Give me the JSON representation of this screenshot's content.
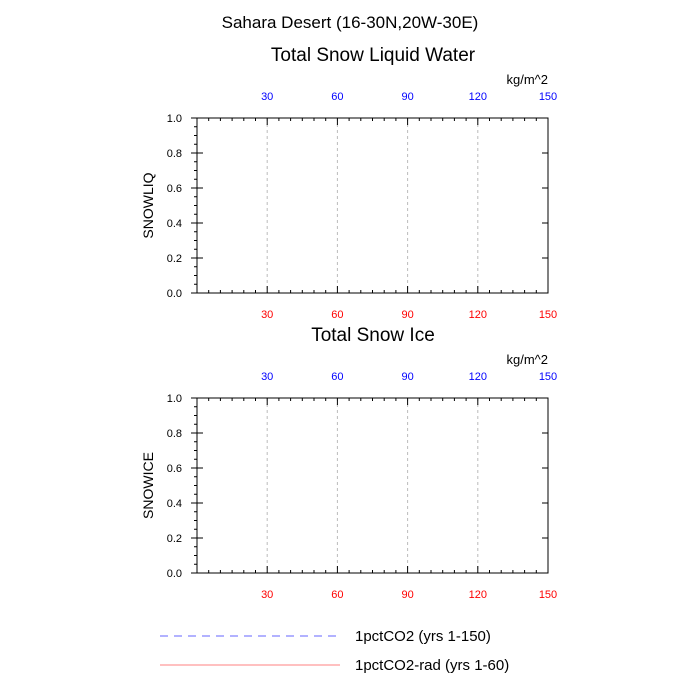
{
  "header": {
    "region_title": "Sahara Desert (16-30N,20W-30E)"
  },
  "colors": {
    "top_axis_ticks": "#0000ff",
    "bottom_axis_ticks": "#ff0000",
    "series_1pctCO2": "#6666ff",
    "series_1pctCO2_rad": "#ff8080",
    "grid": "#bbbbbb",
    "axis": "#000000"
  },
  "chart_data": [
    {
      "type": "line",
      "title": "Total Snow Liquid Water",
      "ylabel": "SNOWLIQ",
      "units": "kg/m^2",
      "xlim": [
        0,
        150
      ],
      "ylim": [
        0,
        1
      ],
      "x_ticks": [
        30,
        60,
        90,
        120,
        150
      ],
      "x_tick_labels": [
        "30",
        "60",
        "90",
        "120",
        "150"
      ],
      "y_ticks": [
        0,
        0.2,
        0.4,
        0.6,
        0.8,
        1
      ],
      "y_tick_labels": [
        "0.0",
        "0.2",
        "0.4",
        "0.6",
        "0.8",
        "1.0"
      ],
      "grid": "vertical dashed",
      "series": [
        {
          "name": "1pctCO2 (yrs 1-150)",
          "x": [
            0,
            150
          ],
          "values": [
            0,
            0
          ]
        },
        {
          "name": "1pctCO2-rad (yrs 1-60)",
          "x": [
            0,
            150
          ],
          "values": [
            0,
            0
          ]
        }
      ]
    },
    {
      "type": "line",
      "title": "Total Snow Ice",
      "ylabel": "SNOWICE",
      "units": "kg/m^2",
      "xlim": [
        0,
        150
      ],
      "ylim": [
        0,
        1
      ],
      "x_ticks": [
        30,
        60,
        90,
        120,
        150
      ],
      "x_tick_labels": [
        "30",
        "60",
        "90",
        "120",
        "150"
      ],
      "y_ticks": [
        0,
        0.2,
        0.4,
        0.6,
        0.8,
        1
      ],
      "y_tick_labels": [
        "0.0",
        "0.2",
        "0.4",
        "0.6",
        "0.8",
        "1.0"
      ],
      "grid": "vertical dashed",
      "series": [
        {
          "name": "1pctCO2 (yrs 1-150)",
          "x": [
            0,
            150
          ],
          "values": [
            0,
            0
          ]
        },
        {
          "name": "1pctCO2-rad (yrs 1-60)",
          "x": [
            0,
            150
          ],
          "values": [
            0,
            0
          ]
        }
      ]
    }
  ],
  "legend": {
    "placement": "bottom",
    "entries": [
      {
        "label": "1pctCO2 (yrs 1-150)",
        "style": "dashed",
        "color": "#6666ff"
      },
      {
        "label": "1pctCO2-rad (yrs 1-60)",
        "style": "solid",
        "color": "#ff8080"
      }
    ]
  }
}
